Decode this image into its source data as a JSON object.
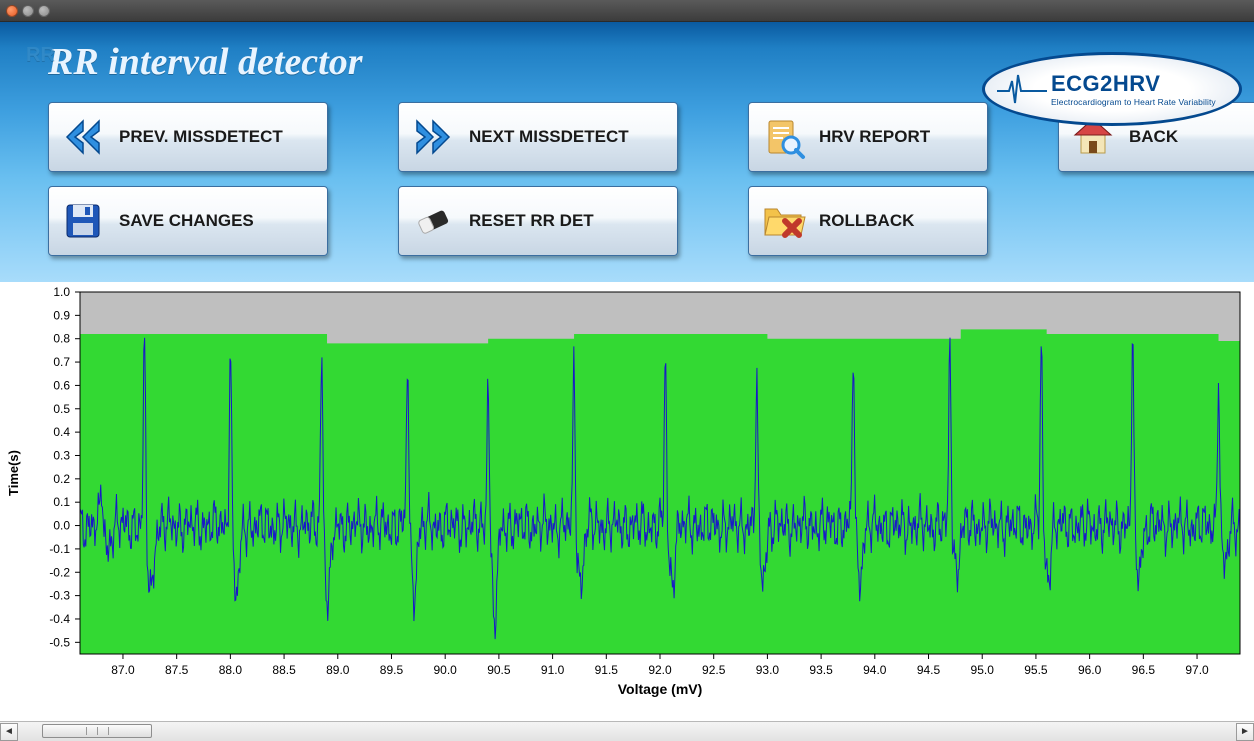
{
  "window": {
    "title": "RR interval detector"
  },
  "app": {
    "title": "RR interval detector",
    "rrBadge": "RR"
  },
  "logo": {
    "line1": "ECG2HRV",
    "line2": "Electrocardiogram to Heart Rate Variability",
    "ring_color": "#04498f",
    "spark_color": "#0a5aa0"
  },
  "colors": {
    "header_top": "#0a5aa0",
    "header_bottom": "#a8dcfb",
    "button_border": "#3b6ea0",
    "chart_bg": "#bfbfbf",
    "grid_frame": "#000000",
    "bar_fill": "#33d933",
    "ecg_line": "#1818c8",
    "axis_text": "#000000"
  },
  "toolbar": {
    "prev_label": "PREV. MISSDETECT",
    "next_label": "NEXT MISSDETECT",
    "report_label": "HRV REPORT",
    "back_label": "BACK",
    "save_label": "SAVE CHANGES",
    "reset_label": "RESET RR DET",
    "rollback_label": "ROLLBACK"
  },
  "chart": {
    "type": "line+bar",
    "xlabel": "Voltage (mV)",
    "xlabel_fontsize": 14,
    "ylabel": "Time(s)",
    "ylabel_fontsize": 13,
    "background_color": "#bfbfbf",
    "frame_color": "#000000",
    "xlim": [
      86.6,
      97.4
    ],
    "ylim": [
      -0.55,
      1.0
    ],
    "xtick_step": 0.5,
    "ytick_step": 0.1,
    "xticks": [
      87.0,
      87.5,
      88.0,
      88.5,
      89.0,
      89.5,
      90.0,
      90.5,
      91.0,
      91.5,
      92.0,
      92.5,
      93.0,
      93.5,
      94.0,
      94.5,
      95.0,
      95.5,
      96.0,
      96.5,
      97.0
    ],
    "yticks": [
      -0.5,
      -0.4,
      -0.3,
      -0.2,
      -0.1,
      0.0,
      0.1,
      0.2,
      0.3,
      0.4,
      0.5,
      0.6,
      0.7,
      0.8,
      0.9,
      1.0
    ],
    "tick_fontsize": 12,
    "bar_series": {
      "color": "#33d933",
      "baseline": -0.55,
      "step_x": [
        86.6,
        87.2,
        88.0,
        88.9,
        89.7,
        90.4,
        91.2,
        92.1,
        93.0,
        93.9,
        94.8,
        95.6,
        96.4,
        97.2,
        97.4
      ],
      "step_y": [
        0.82,
        0.82,
        0.82,
        0.78,
        0.78,
        0.8,
        0.82,
        0.82,
        0.8,
        0.8,
        0.84,
        0.82,
        0.82,
        0.79,
        0.79
      ]
    },
    "ecg_series": {
      "color": "#1818c8",
      "line_width": 1,
      "noise_amp": 0.1,
      "baseline": 0.0,
      "spikes": [
        {
          "x": 86.8,
          "peak": 0.2,
          "dip": -0.1
        },
        {
          "x": 87.2,
          "peak": 0.8,
          "dip": -0.3
        },
        {
          "x": 88.0,
          "peak": 0.8,
          "dip": -0.3
        },
        {
          "x": 88.85,
          "peak": 0.78,
          "dip": -0.32
        },
        {
          "x": 89.65,
          "peak": 0.76,
          "dip": -0.28
        },
        {
          "x": 90.4,
          "peak": 0.7,
          "dip": -0.4
        },
        {
          "x": 91.2,
          "peak": 0.72,
          "dip": -0.26
        },
        {
          "x": 92.05,
          "peak": 0.75,
          "dip": -0.25
        },
        {
          "x": 92.9,
          "peak": 0.64,
          "dip": -0.22
        },
        {
          "x": 93.8,
          "peak": 0.8,
          "dip": -0.22
        },
        {
          "x": 94.7,
          "peak": 0.82,
          "dip": -0.2
        },
        {
          "x": 95.55,
          "peak": 0.8,
          "dip": -0.22
        },
        {
          "x": 96.4,
          "peak": 0.8,
          "dip": -0.2
        },
        {
          "x": 97.2,
          "peak": 0.68,
          "dip": -0.18
        }
      ]
    }
  },
  "scrollbar": {
    "thumb_left_pct": 2,
    "thumb_width_pct": 9
  }
}
